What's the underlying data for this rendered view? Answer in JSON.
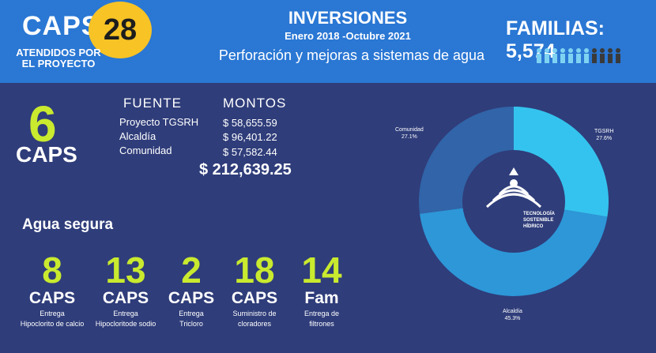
{
  "header": {
    "caps_label": "CAPS",
    "caps_count": "28",
    "caps_sub": "ATENDIDOS POR EL PROYECTO",
    "title": "INVERSIONES",
    "date_range": "Enero 2018 -Octubre 2021",
    "description": "Perforación y mejoras a sistemas de agua",
    "familias": "FAMILIAS: 5,574",
    "people_icons": {
      "highlighted": 7,
      "total": 11,
      "highlight_color": "#7fd3f2",
      "dim_color": "#3a3a3a"
    }
  },
  "summary": {
    "caps_number": "6",
    "caps_label": "CAPS",
    "fuente_header": "FUENTE",
    "montos_header": "MONTOS",
    "rows": [
      {
        "source": "Proyecto TGSRH",
        "amount": "$ 58,655.59"
      },
      {
        "source": "Alcaldía",
        "amount": "$ 96,401.22"
      },
      {
        "source": "Comunidad",
        "amount": "$ 57,582.44"
      }
    ],
    "total": "$ 212,639.25"
  },
  "agua_segura": {
    "title": "Agua segura",
    "items": [
      {
        "number": "8",
        "unit": "CAPS",
        "desc1": "Entrega",
        "desc2": "Hipoclorito de calcio"
      },
      {
        "number": "13",
        "unit": "CAPS",
        "desc1": "Entrega",
        "desc2": "Hipocloritode sodio"
      },
      {
        "number": "2",
        "unit": "CAPS",
        "desc1": "Entrega",
        "desc2": "Tricloro"
      },
      {
        "number": "18",
        "unit": "CAPS",
        "desc1": "Suministro de",
        "desc2": "cloradores"
      },
      {
        "number": "14",
        "unit": "Fam",
        "desc1": "Entrega de",
        "desc2": "filtrones"
      }
    ]
  },
  "chart_data": {
    "type": "pie",
    "donut": true,
    "slices": [
      {
        "name": "TGSRH",
        "value": 27.6,
        "label": "27.6%",
        "color": "#34c3ee"
      },
      {
        "name": "Alcaldía",
        "value": 45.3,
        "label": "45.3%",
        "color": "#2d97d8"
      },
      {
        "name": "Comunidad",
        "value": 27.1,
        "label": "27.1%",
        "color": "#3164a8"
      }
    ],
    "center_logo_text": [
      "TECNOLOGÍA",
      "SOSTENIBLE",
      "HÍDRICO"
    ]
  },
  "colors": {
    "background": "#2f3d7a",
    "header": "#2a77d4",
    "accent": "#c9ea2e",
    "badge": "#f7c325"
  }
}
